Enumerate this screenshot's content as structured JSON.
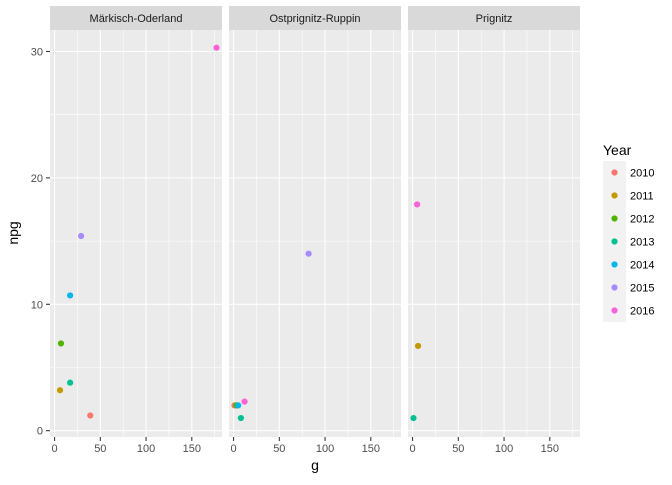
{
  "chart_data": {
    "type": "scatter",
    "facets": [
      "Märkisch-Oderland",
      "Ostprignitz-Ruppin",
      "Prignitz"
    ],
    "xlabel": "g",
    "ylabel": "npg",
    "xlim": [
      -5,
      183
    ],
    "ylim": [
      -0.5,
      31.7
    ],
    "xticks": [
      0,
      50,
      100,
      150
    ],
    "yticks": [
      0,
      10,
      20,
      30
    ],
    "xtick_labels": [
      "0",
      "50",
      "100",
      "150"
    ],
    "ytick_labels": [
      "0",
      "10",
      "20",
      "30"
    ],
    "grid": true,
    "legend": {
      "title": "Year",
      "placement": "right",
      "entries": [
        {
          "label": "2010",
          "color": "#F8766D"
        },
        {
          "label": "2011",
          "color": "#C49A00"
        },
        {
          "label": "2012",
          "color": "#53B400"
        },
        {
          "label": "2013",
          "color": "#00C094"
        },
        {
          "label": "2014",
          "color": "#00B6EB"
        },
        {
          "label": "2015",
          "color": "#A58AFF"
        },
        {
          "label": "2016",
          "color": "#FB61D7"
        }
      ]
    },
    "points": [
      {
        "facet": "Märkisch-Oderland",
        "year": "2010",
        "x": 39,
        "y": 1.2
      },
      {
        "facet": "Märkisch-Oderland",
        "year": "2011",
        "x": 6,
        "y": 3.2
      },
      {
        "facet": "Märkisch-Oderland",
        "year": "2012",
        "x": 7,
        "y": 6.9
      },
      {
        "facet": "Märkisch-Oderland",
        "year": "2013",
        "x": 17,
        "y": 3.8
      },
      {
        "facet": "Märkisch-Oderland",
        "year": "2014",
        "x": 17,
        "y": 10.7
      },
      {
        "facet": "Märkisch-Oderland",
        "year": "2015",
        "x": 29,
        "y": 15.4
      },
      {
        "facet": "Märkisch-Oderland",
        "year": "2016",
        "x": 177,
        "y": 30.3
      },
      {
        "facet": "Ostprignitz-Ruppin",
        "year": "2010",
        "x": 1,
        "y": 2.0
      },
      {
        "facet": "Ostprignitz-Ruppin",
        "year": "2012",
        "x": 3,
        "y": 2.0
      },
      {
        "facet": "Ostprignitz-Ruppin",
        "year": "2013",
        "x": 8,
        "y": 1.0
      },
      {
        "facet": "Ostprignitz-Ruppin",
        "year": "2014",
        "x": 5,
        "y": 2.0
      },
      {
        "facet": "Ostprignitz-Ruppin",
        "year": "2015",
        "x": 82,
        "y": 14.0
      },
      {
        "facet": "Ostprignitz-Ruppin",
        "year": "2016",
        "x": 12,
        "y": 2.3
      },
      {
        "facet": "Prignitz",
        "year": "2011",
        "x": 6,
        "y": 6.7
      },
      {
        "facet": "Prignitz",
        "year": "2013",
        "x": 1,
        "y": 1.0
      },
      {
        "facet": "Prignitz",
        "year": "2016",
        "x": 5,
        "y": 17.9
      }
    ]
  }
}
